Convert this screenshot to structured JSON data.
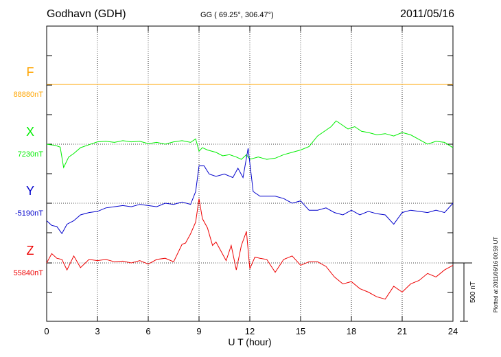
{
  "header": {
    "station": "Godhavn (GDH)",
    "coords": "GG ( 69.25°, 306.47°)",
    "date": "2011/05/16"
  },
  "footer": {
    "plotted": "Plotted at 2011/06/16 00:59 UT"
  },
  "chart_data": {
    "type": "line",
    "title": "Godhavn (GDH)",
    "xlabel": "U T (hour)",
    "xlim": [
      0,
      24
    ],
    "xticks": [
      0,
      3,
      6,
      9,
      12,
      15,
      18,
      21,
      24
    ],
    "grid": true,
    "y_units": "nT",
    "scale_bar": {
      "value": 500,
      "label": "500 nT"
    },
    "series": [
      {
        "name": "F",
        "baseline_label": "88880nT",
        "color": "#ffa500",
        "x": [
          0,
          24
        ],
        "values": [
          0,
          0
        ]
      },
      {
        "name": "X",
        "baseline_label": "7230nT",
        "color": "#00ee00",
        "x": [
          0,
          0.5,
          0.8,
          1.0,
          1.3,
          1.6,
          2.0,
          2.5,
          3,
          3.5,
          4,
          4.5,
          5,
          5.5,
          6,
          6.5,
          7,
          7.5,
          8,
          8.5,
          8.8,
          9.0,
          9.2,
          9.5,
          10.0,
          10.4,
          10.8,
          11.2,
          11.5,
          11.8,
          12.0,
          12.5,
          13,
          13.5,
          14,
          14.5,
          15,
          15.5,
          16,
          16.5,
          16.8,
          17.1,
          17.4,
          17.8,
          18.2,
          18.6,
          19.0,
          19.5,
          20,
          20.5,
          21,
          21.5,
          22,
          22.5,
          23,
          23.5,
          24
        ],
        "values": [
          0,
          -10,
          -25,
          -200,
          -110,
          -80,
          -30,
          -5,
          20,
          25,
          15,
          30,
          20,
          25,
          5,
          15,
          0,
          20,
          30,
          15,
          45,
          -60,
          -30,
          -50,
          -70,
          -100,
          -90,
          -110,
          -130,
          -90,
          -130,
          -110,
          -130,
          -120,
          -90,
          -70,
          -50,
          -20,
          70,
          120,
          150,
          200,
          170,
          130,
          150,
          110,
          100,
          80,
          90,
          70,
          100,
          80,
          40,
          0,
          25,
          15,
          -30
        ]
      },
      {
        "name": "Y",
        "baseline_label": "-5190nT",
        "color": "#0000cc",
        "x": [
          0,
          0.3,
          0.6,
          0.9,
          1.2,
          1.6,
          2.0,
          2.5,
          3,
          3.5,
          4,
          4.5,
          5,
          5.5,
          6,
          6.5,
          7,
          7.5,
          8,
          8.5,
          8.8,
          9.0,
          9.3,
          9.6,
          10.0,
          10.5,
          11.0,
          11.3,
          11.6,
          11.9,
          12.2,
          12.6,
          13,
          13.5,
          14,
          14.5,
          15,
          15.5,
          16,
          16.5,
          17,
          17.5,
          18,
          18.5,
          19,
          19.5,
          20,
          20.5,
          21,
          21.5,
          22,
          22.5,
          23,
          23.5,
          24
        ],
        "values": [
          -150,
          -190,
          -200,
          -260,
          -180,
          -150,
          -100,
          -80,
          -70,
          -40,
          -30,
          -20,
          -30,
          -10,
          -20,
          -30,
          0,
          -10,
          10,
          -10,
          100,
          320,
          320,
          250,
          230,
          250,
          220,
          300,
          220,
          470,
          100,
          60,
          60,
          60,
          40,
          0,
          20,
          -60,
          -60,
          -40,
          -80,
          -100,
          -60,
          -100,
          -70,
          -90,
          -100,
          -180,
          -80,
          -60,
          -70,
          -80,
          -60,
          -80,
          0
        ]
      },
      {
        "name": "Z",
        "baseline_label": "55840nT",
        "color": "#ee0000",
        "x": [
          0,
          0.3,
          0.6,
          0.9,
          1.2,
          1.6,
          2.0,
          2.5,
          3,
          3.5,
          4,
          4.5,
          5,
          5.5,
          6,
          6.5,
          7,
          7.5,
          8,
          8.2,
          8.5,
          8.8,
          9.0,
          9.2,
          9.5,
          9.8,
          10.0,
          10.3,
          10.6,
          10.9,
          11.2,
          11.5,
          11.8,
          12.0,
          12.3,
          12.6,
          13,
          13.5,
          14,
          14.5,
          15,
          15.5,
          16,
          16.5,
          17,
          17.5,
          18,
          18.5,
          19,
          19.5,
          20,
          20.5,
          21,
          21.5,
          22,
          22.5,
          23,
          23.5,
          24
        ],
        "values": [
          0,
          80,
          40,
          30,
          -60,
          60,
          -40,
          30,
          20,
          30,
          10,
          15,
          0,
          20,
          -10,
          30,
          40,
          10,
          160,
          170,
          250,
          350,
          550,
          380,
          300,
          150,
          180,
          100,
          20,
          150,
          -60,
          150,
          270,
          -50,
          50,
          40,
          30,
          -80,
          30,
          60,
          -20,
          10,
          10,
          -30,
          -120,
          -180,
          -160,
          -220,
          -250,
          -290,
          -310,
          -200,
          -250,
          -180,
          -150,
          -90,
          -120,
          -60,
          -20
        ]
      }
    ]
  }
}
